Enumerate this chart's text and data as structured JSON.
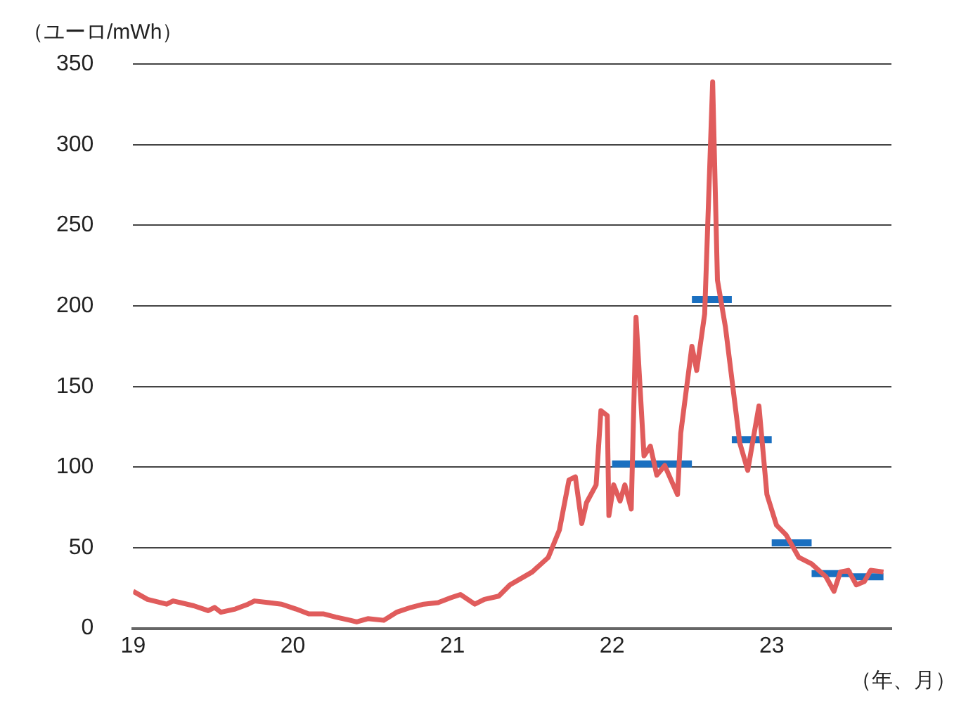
{
  "chart_data": {
    "type": "line",
    "ylabel": "（ユーロ/mWh）",
    "xlabel": "（年、月）",
    "xlim": [
      19,
      23.75
    ],
    "xticks": [
      19,
      20,
      21,
      22,
      23
    ],
    "ylim": [
      0,
      350
    ],
    "yticks": [
      0,
      50,
      100,
      150,
      200,
      250,
      300,
      350
    ],
    "grid": "y",
    "legend": false,
    "marker": "none",
    "series": [
      {
        "color": "#e05c5c",
        "x": [
          19.0,
          19.09,
          19.21,
          19.25,
          19.38,
          19.47,
          19.51,
          19.55,
          19.64,
          19.72,
          19.76,
          19.85,
          19.93,
          20.02,
          20.1,
          20.19,
          20.27,
          20.36,
          20.4,
          20.47,
          20.57,
          20.65,
          20.74,
          20.82,
          20.91,
          20.99,
          21.05,
          21.14,
          21.2,
          21.29,
          21.36,
          21.5,
          21.6,
          21.67,
          21.73,
          21.77,
          21.81,
          21.84,
          21.9,
          21.93,
          21.97,
          21.98,
          22.01,
          22.05,
          22.08,
          22.12,
          22.15,
          22.2,
          22.24,
          22.28,
          22.33,
          22.41,
          22.43,
          22.5,
          22.53,
          22.58,
          22.63,
          22.66,
          22.71,
          22.8,
          22.85,
          22.92,
          22.97,
          23.03,
          23.09,
          23.17,
          23.25,
          23.34,
          23.39,
          23.43,
          23.48,
          23.53,
          23.58,
          23.62,
          23.7
        ],
        "values": [
          23,
          18,
          15,
          17,
          14,
          11,
          13,
          10,
          12,
          15,
          17,
          16,
          15,
          12,
          9,
          9,
          7,
          5,
          4,
          6,
          5,
          10,
          13,
          15,
          16,
          19,
          21,
          15,
          18,
          20,
          27,
          35,
          44,
          61,
          92,
          94,
          65,
          78,
          89,
          135,
          132,
          70,
          89,
          79,
          89,
          74,
          193,
          107,
          113,
          95,
          101,
          83,
          121,
          175,
          160,
          195,
          339,
          216,
          187,
          115,
          98,
          138,
          83,
          64,
          58,
          44,
          40,
          32,
          23,
          35,
          36,
          27,
          29,
          36,
          35
        ]
      },
      {
        "color": "#1a6fc0",
        "type": "step",
        "x": [
          22.0,
          22.5
        ],
        "values": [
          102,
          102
        ]
      },
      {
        "color": "#1a6fc0",
        "type": "step",
        "x": [
          22.5,
          22.75
        ],
        "values": [
          204,
          204
        ]
      },
      {
        "color": "#1a6fc0",
        "type": "step",
        "x": [
          22.75,
          23.0
        ],
        "values": [
          117,
          117
        ]
      },
      {
        "color": "#1a6fc0",
        "type": "step",
        "x": [
          23.0,
          23.25
        ],
        "values": [
          53,
          53
        ]
      },
      {
        "color": "#1a6fc0",
        "type": "step",
        "x": [
          23.25,
          23.5
        ],
        "values": [
          34,
          34
        ]
      },
      {
        "color": "#1a6fc0",
        "type": "step",
        "x": [
          23.5,
          23.7
        ],
        "values": [
          32,
          32
        ]
      }
    ]
  }
}
